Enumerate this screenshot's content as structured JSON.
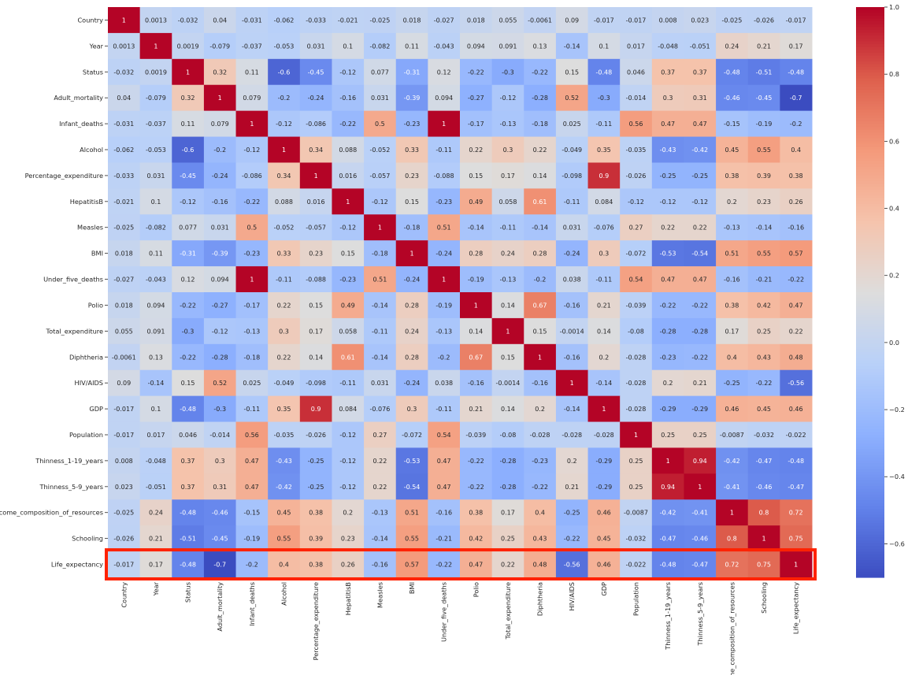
{
  "chart_data": {
    "type": "heatmap",
    "title": "",
    "xlabel": "",
    "ylabel": "",
    "colormap": "coolwarm",
    "vmin": -0.7,
    "vmax": 1.0,
    "colorbar_ticks": [
      1.0,
      0.8,
      0.6,
      0.4,
      0.2,
      0.0,
      -0.2,
      -0.4,
      -0.6
    ],
    "colorbar_tick_labels": [
      "1.0",
      "0.8",
      "0.6",
      "0.4",
      "0.2",
      "0.0",
      "−0.2",
      "−0.4",
      "−0.6"
    ],
    "labels": [
      "Country",
      "Year",
      "Status",
      "Adult_mortality",
      "Infant_deaths",
      "Alcohol",
      "Percentage_expenditure",
      "HepatitisB",
      "Measles",
      "BMI",
      "Under_five_deaths",
      "Polio",
      "Total_expenditure",
      "Diphtheria",
      "HIV/AIDS",
      "GDP",
      "Population",
      "Thinness_1-19_years",
      "Thinness_5-9_years",
      "Income_composition_of_resources",
      "Schooling",
      "Life_expectancy"
    ],
    "matrix": [
      [
        1,
        0.0013,
        -0.032,
        0.04,
        -0.031,
        -0.062,
        -0.033,
        -0.021,
        -0.025,
        0.018,
        -0.027,
        0.018,
        0.055,
        -0.0061,
        0.09,
        -0.017,
        -0.017,
        0.008,
        0.023,
        -0.025,
        -0.026,
        -0.017
      ],
      [
        0.0013,
        1,
        0.0019,
        -0.079,
        -0.037,
        -0.053,
        0.031,
        0.1,
        -0.082,
        0.11,
        -0.043,
        0.094,
        0.091,
        0.13,
        -0.14,
        0.1,
        0.017,
        -0.048,
        -0.051,
        0.24,
        0.21,
        0.17
      ],
      [
        -0.032,
        0.0019,
        1,
        0.32,
        0.11,
        -0.6,
        -0.45,
        -0.12,
        0.077,
        -0.31,
        0.12,
        -0.22,
        -0.3,
        -0.22,
        0.15,
        -0.48,
        0.046,
        0.37,
        0.37,
        -0.48,
        -0.51,
        -0.48
      ],
      [
        0.04,
        -0.079,
        0.32,
        1,
        0.079,
        -0.2,
        -0.24,
        -0.16,
        0.031,
        -0.39,
        0.094,
        -0.27,
        -0.12,
        -0.28,
        0.52,
        -0.3,
        -0.014,
        0.3,
        0.31,
        -0.46,
        -0.45,
        -0.7
      ],
      [
        -0.031,
        -0.037,
        0.11,
        0.079,
        1,
        -0.12,
        -0.086,
        -0.22,
        0.5,
        -0.23,
        1,
        -0.17,
        -0.13,
        -0.18,
        0.025,
        -0.11,
        0.56,
        0.47,
        0.47,
        -0.15,
        -0.19,
        -0.2
      ],
      [
        -0.062,
        -0.053,
        -0.6,
        -0.2,
        -0.12,
        1,
        0.34,
        0.088,
        -0.052,
        0.33,
        -0.11,
        0.22,
        0.3,
        0.22,
        -0.049,
        0.35,
        -0.035,
        -0.43,
        -0.42,
        0.45,
        0.55,
        0.4
      ],
      [
        -0.033,
        0.031,
        -0.45,
        -0.24,
        -0.086,
        0.34,
        1,
        0.016,
        -0.057,
        0.23,
        -0.088,
        0.15,
        0.17,
        0.14,
        -0.098,
        0.9,
        -0.026,
        -0.25,
        -0.25,
        0.38,
        0.39,
        0.38
      ],
      [
        -0.021,
        0.1,
        -0.12,
        -0.16,
        -0.22,
        0.088,
        0.016,
        1,
        -0.12,
        0.15,
        -0.23,
        0.49,
        0.058,
        0.61,
        -0.11,
        0.084,
        -0.12,
        -0.12,
        -0.12,
        0.2,
        0.23,
        0.26
      ],
      [
        -0.025,
        -0.082,
        0.077,
        0.031,
        0.5,
        -0.052,
        -0.057,
        -0.12,
        1,
        -0.18,
        0.51,
        -0.14,
        -0.11,
        -0.14,
        0.031,
        -0.076,
        0.27,
        0.22,
        0.22,
        -0.13,
        -0.14,
        -0.16
      ],
      [
        0.018,
        0.11,
        -0.31,
        -0.39,
        -0.23,
        0.33,
        0.23,
        0.15,
        -0.18,
        1,
        -0.24,
        0.28,
        0.24,
        0.28,
        -0.24,
        0.3,
        -0.072,
        -0.53,
        -0.54,
        0.51,
        0.55,
        0.57
      ],
      [
        -0.027,
        -0.043,
        0.12,
        0.094,
        1,
        -0.11,
        -0.088,
        -0.23,
        0.51,
        -0.24,
        1,
        -0.19,
        -0.13,
        -0.2,
        0.038,
        -0.11,
        0.54,
        0.47,
        0.47,
        -0.16,
        -0.21,
        -0.22
      ],
      [
        0.018,
        0.094,
        -0.22,
        -0.27,
        -0.17,
        0.22,
        0.15,
        0.49,
        -0.14,
        0.28,
        -0.19,
        1,
        0.14,
        0.67,
        -0.16,
        0.21,
        -0.039,
        -0.22,
        -0.22,
        0.38,
        0.42,
        0.47
      ],
      [
        0.055,
        0.091,
        -0.3,
        -0.12,
        -0.13,
        0.3,
        0.17,
        0.058,
        -0.11,
        0.24,
        -0.13,
        0.14,
        1,
        0.15,
        -0.0014,
        0.14,
        -0.08,
        -0.28,
        -0.28,
        0.17,
        0.25,
        0.22
      ],
      [
        -0.0061,
        0.13,
        -0.22,
        -0.28,
        -0.18,
        0.22,
        0.14,
        0.61,
        -0.14,
        0.28,
        -0.2,
        0.67,
        0.15,
        1,
        -0.16,
        0.2,
        -0.028,
        -0.23,
        -0.22,
        0.4,
        0.43,
        0.48
      ],
      [
        0.09,
        -0.14,
        0.15,
        0.52,
        0.025,
        -0.049,
        -0.098,
        -0.11,
        0.031,
        -0.24,
        0.038,
        -0.16,
        -0.0014,
        -0.16,
        1,
        -0.14,
        -0.028,
        0.2,
        0.21,
        -0.25,
        -0.22,
        -0.56
      ],
      [
        -0.017,
        0.1,
        -0.48,
        -0.3,
        -0.11,
        0.35,
        0.9,
        0.084,
        -0.076,
        0.3,
        -0.11,
        0.21,
        0.14,
        0.2,
        -0.14,
        1,
        -0.028,
        -0.29,
        -0.29,
        0.46,
        0.45,
        0.46
      ],
      [
        -0.017,
        0.017,
        0.046,
        -0.014,
        0.56,
        -0.035,
        -0.026,
        -0.12,
        0.27,
        -0.072,
        0.54,
        -0.039,
        -0.08,
        -0.028,
        -0.028,
        -0.028,
        1,
        0.25,
        0.25,
        -0.0087,
        -0.032,
        -0.022
      ],
      [
        0.008,
        -0.048,
        0.37,
        0.3,
        0.47,
        -0.43,
        -0.25,
        -0.12,
        0.22,
        -0.53,
        0.47,
        -0.22,
        -0.28,
        -0.23,
        0.2,
        -0.29,
        0.25,
        1,
        0.94,
        -0.42,
        -0.47,
        -0.48
      ],
      [
        0.023,
        -0.051,
        0.37,
        0.31,
        0.47,
        -0.42,
        -0.25,
        -0.12,
        0.22,
        -0.54,
        0.47,
        -0.22,
        -0.28,
        -0.22,
        0.21,
        -0.29,
        0.25,
        0.94,
        1,
        -0.41,
        -0.46,
        -0.47
      ],
      [
        -0.025,
        0.24,
        -0.48,
        -0.46,
        -0.15,
        0.45,
        0.38,
        0.2,
        -0.13,
        0.51,
        -0.16,
        0.38,
        0.17,
        0.4,
        -0.25,
        0.46,
        -0.0087,
        -0.42,
        -0.41,
        1,
        0.8,
        0.72
      ],
      [
        -0.026,
        0.21,
        -0.51,
        -0.45,
        -0.19,
        0.55,
        0.39,
        0.23,
        -0.14,
        0.55,
        -0.21,
        0.42,
        0.25,
        0.43,
        -0.22,
        0.45,
        -0.032,
        -0.47,
        -0.46,
        0.8,
        1,
        0.75
      ],
      [
        -0.017,
        0.17,
        -0.48,
        -0.7,
        -0.2,
        0.4,
        0.38,
        0.26,
        -0.16,
        0.57,
        -0.22,
        0.47,
        0.22,
        0.48,
        -0.56,
        0.46,
        -0.022,
        -0.48,
        -0.47,
        0.72,
        0.75,
        1
      ]
    ],
    "highlight": {
      "row": "Life_expectancy",
      "color": "#ff2200"
    },
    "grid": false,
    "legend": "colorbar-right"
  }
}
